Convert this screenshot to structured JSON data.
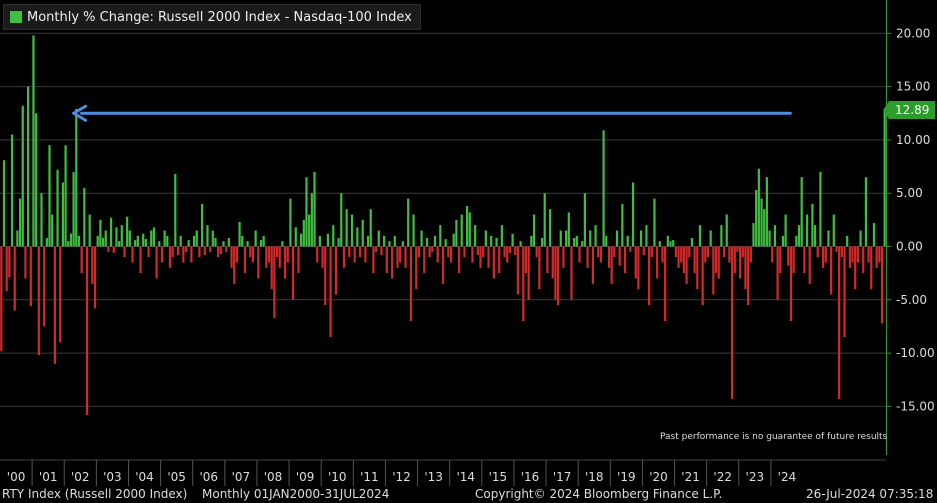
{
  "legend": {
    "label": "Monthly % Change: Russell 2000 Index - Nasdaq-100 Index",
    "color": "#3fbf3f"
  },
  "note": "Past performance is no guarantee of future results",
  "last_value_badge": "12.89",
  "footer": {
    "left": "RTY Index (Russell 2000 Index)",
    "period": "Monthly 01JAN2000-31JUL2024",
    "copyright": "Copyright© 2024 Bloomberg Finance L.P.",
    "timestamp": "26-Jul-2024 07:35:18"
  },
  "colors": {
    "positive": "#3fbf3f",
    "negative": "#d42a2a",
    "arrow": "#4a90e2",
    "grid": "#3a3a3a",
    "axis": "#2f9a2f"
  },
  "chart_data": {
    "type": "bar",
    "title": "Monthly % Change: Russell 2000 Index - Nasdaq-100 Index",
    "ylim": [
      -18,
      23
    ],
    "y_ticks": [
      "20.00",
      "15.00",
      "10.00",
      "5.00",
      "0.00",
      "-5.00",
      "-10.00",
      "-15.00"
    ],
    "y_tick_values": [
      20,
      15,
      10,
      5,
      0,
      -5,
      -10,
      -15
    ],
    "x_tick_labels": [
      "'00",
      "'01",
      "'02",
      "'03",
      "'04",
      "'05",
      "'06",
      "'07",
      "'08",
      "'09",
      "'10",
      "'11",
      "'12",
      "'13",
      "'14",
      "'15",
      "'16",
      "'17",
      "'18",
      "'19",
      "'20",
      "'21",
      "'22",
      "'23",
      "'24"
    ],
    "grid": true,
    "legend_position": "top-left",
    "annotation": {
      "type": "arrow",
      "from_month_index": 294,
      "to_month_index": 24,
      "y": 12.5
    },
    "series": [
      {
        "values": [
          -9.8,
          8.1,
          -4.2,
          -2.9,
          10.5,
          -6.0,
          1.5,
          4.5,
          13.2,
          -3.0,
          15.0,
          -5.6,
          19.8,
          12.5,
          -10.2,
          5.0,
          -7.5,
          0.8,
          9.5,
          3.0,
          -11.0,
          7.2,
          -9.0,
          6.0,
          9.5,
          0.5,
          1.2,
          7.0,
          12.9,
          1.0,
          -2.5,
          5.5,
          -15.8,
          3.0,
          -3.5,
          -5.8,
          1.0,
          2.5,
          0.8,
          1.5,
          -0.5,
          2.7,
          -0.6,
          1.8,
          0.5,
          2.0,
          -1.0,
          2.8,
          1.5,
          -1.5,
          0.6,
          1.0,
          -2.5,
          1.2,
          0.7,
          -1.0,
          1.5,
          1.8,
          -3.0,
          0.5,
          -1.5,
          1.5,
          1.0,
          -2.0,
          -1.0,
          6.8,
          -0.8,
          1.0,
          -1.5,
          -0.5,
          0.6,
          -1.5,
          1.0,
          1.5,
          -1.0,
          4.0,
          -0.8,
          2.0,
          -0.5,
          1.5,
          0.8,
          -1.0,
          -0.7,
          0.5,
          -0.5,
          0.8,
          -2.0,
          -3.5,
          -1.5,
          2.3,
          1.0,
          -2.5,
          0.5,
          -1.0,
          -1.5,
          1.5,
          -3.0,
          0.6,
          1.0,
          -2.0,
          -1.5,
          -4.0,
          -6.7,
          -1.0,
          -2.0,
          0.5,
          -3.0,
          -1.5,
          4.5,
          -5.0,
          1.8,
          -2.5,
          1.2,
          2.5,
          6.5,
          3.0,
          5.0,
          7.0,
          -1.5,
          1.0,
          -2.0,
          -5.5,
          1.2,
          -8.5,
          2.0,
          -4.5,
          0.8,
          5.0,
          -2.0,
          3.5,
          -1.0,
          3.0,
          -1.5,
          1.8,
          -1.0,
          2.5,
          -1.5,
          1.0,
          3.5,
          -2.5,
          -0.5,
          1.5,
          -0.8,
          1.0,
          -2.5,
          0.5,
          -3.0,
          1.0,
          -2.0,
          -1.5,
          0.5,
          -2.0,
          4.5,
          -7.0,
          3.0,
          -4.0,
          -1.0,
          1.5,
          -2.5,
          0.8,
          -1.0,
          -0.5,
          1.0,
          -1.5,
          2.0,
          -3.5,
          0.7,
          -1.0,
          -1.5,
          1.2,
          2.5,
          -2.5,
          3.0,
          -1.0,
          3.8,
          3.2,
          -1.5,
          2.0,
          -0.8,
          -2.0,
          -1.0,
          1.5,
          -2.0,
          1.0,
          -3.0,
          0.8,
          -2.5,
          2.0,
          -1.0,
          -1.5,
          -0.6,
          1.2,
          -0.8,
          -4.5,
          0.5,
          -7.0,
          -2.5,
          -5.0,
          1.0,
          3.0,
          -1.0,
          -4.0,
          0.8,
          5.0,
          -2.5,
          3.5,
          -3.0,
          -5.0,
          -5.5,
          1.5,
          -2.0,
          1.5,
          3.2,
          -5.0,
          0.8,
          1.0,
          -1.5,
          0.5,
          5.0,
          -2.0,
          1.5,
          -3.5,
          2.0,
          -1.0,
          -1.5,
          10.9,
          1.0,
          -2.0,
          -3.5,
          -1.0,
          1.5,
          -1.8,
          4.0,
          -2.5,
          1.0,
          -0.5,
          6.0,
          -3.0,
          -4.0,
          1.5,
          -0.8,
          2.0,
          -5.5,
          -1.0,
          4.5,
          -3.0,
          0.5,
          -1.5,
          -7.0,
          1.0,
          0.5,
          0.6,
          -1.0,
          -2.0,
          -1.5,
          -2.5,
          -3.5,
          -1.0,
          0.8,
          -2.5,
          -4.0,
          2.0,
          -5.5,
          -1.5,
          -1.0,
          1.5,
          -4.5,
          -2.5,
          -3.0,
          2.0,
          -1.0,
          3.0,
          -1.5,
          -14.3,
          -2.5,
          -0.5,
          -3.0,
          -1.0,
          -4.0,
          -5.5,
          -1.5,
          2.2,
          5.3,
          7.3,
          4.5,
          3.5,
          6.5,
          1.5,
          -1.5,
          2.0,
          -5.0,
          -2.5,
          1.0,
          3.0,
          -1.8,
          -7.0,
          -2.5,
          1.0,
          2.0,
          6.5,
          -2.5,
          3.0,
          -3.5,
          4.0,
          2.0,
          -1.0,
          7.0,
          -2.0,
          -1.5,
          1.5,
          -4.5,
          3.0,
          -0.5,
          -14.3,
          -1.0,
          -8.5,
          1.0,
          -2.0,
          -1.5,
          -4.0,
          -1.5,
          1.5,
          -2.5,
          6.5,
          -1.5,
          -4.0,
          2.2,
          -2.0,
          -1.5,
          -7.2,
          12.89
        ]
      }
    ]
  }
}
